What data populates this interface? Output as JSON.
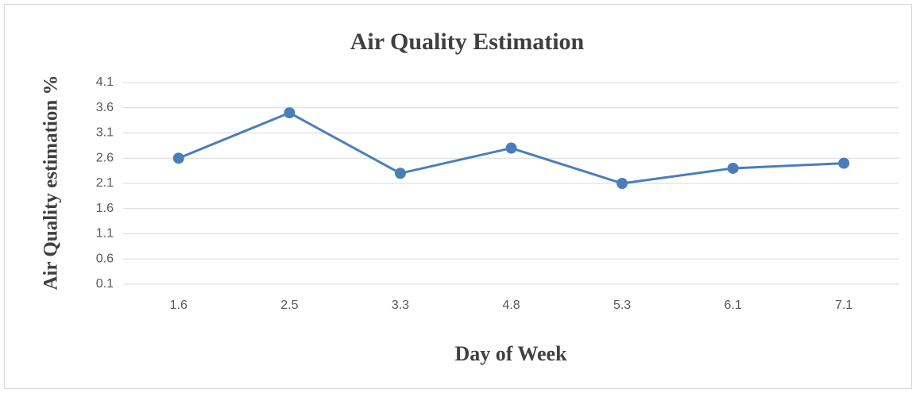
{
  "chart_data": {
    "type": "line",
    "title": "Air Quality Estimation",
    "x_label": "Day of Week",
    "y_label": "Air Quality estimation %",
    "categories": [
      "1.6",
      "2.5",
      "3.3",
      "4.8",
      "5.3",
      "6.1",
      "7.1"
    ],
    "series": [
      {
        "name": "Air Quality estimation",
        "color": "#4a7ebb",
        "values": [
          2.6,
          3.5,
          2.3,
          2.8,
          2.1,
          2.4,
          2.5
        ]
      }
    ],
    "ylim": [
      0.1,
      4.1
    ],
    "yticks": [
      0.1,
      0.6,
      1.1,
      1.6,
      2.1,
      2.6,
      3.1,
      3.6,
      4.1
    ],
    "grid": true
  }
}
